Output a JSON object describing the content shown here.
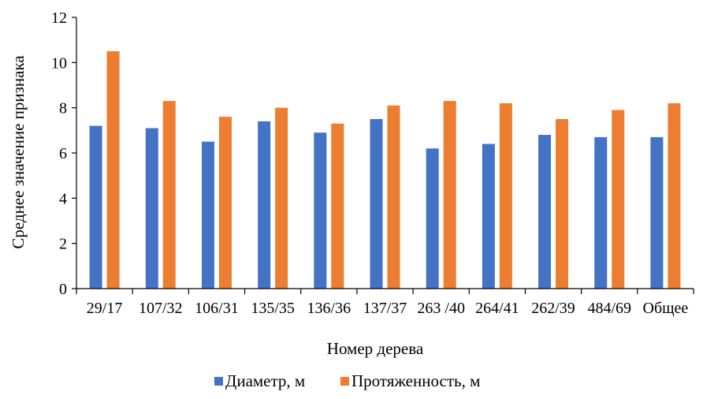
{
  "chart_data": {
    "type": "bar",
    "title": "",
    "xlabel": "Номер дерева",
    "ylabel": "Среднее значение признака",
    "ylim": [
      0,
      12
    ],
    "yticks": [
      0,
      2,
      4,
      6,
      8,
      10,
      12
    ],
    "grid": false,
    "legend_position": "bottom",
    "categories": [
      "29/17",
      "107/32",
      "106/31",
      "135/35",
      "136/36",
      "137/37",
      "263 /40",
      "264/41",
      "262/39",
      "484/69",
      "Общее"
    ],
    "series": [
      {
        "name": "Диаметр, м",
        "color": "#4472C4",
        "values": [
          7.2,
          7.1,
          6.5,
          7.4,
          6.9,
          7.5,
          6.2,
          6.4,
          6.8,
          6.7,
          6.7
        ]
      },
      {
        "name": "Протяженность, м",
        "color": "#ED7D31",
        "values": [
          10.5,
          8.3,
          7.6,
          8.0,
          7.3,
          8.1,
          8.3,
          8.2,
          7.5,
          7.9,
          8.2
        ]
      }
    ]
  }
}
